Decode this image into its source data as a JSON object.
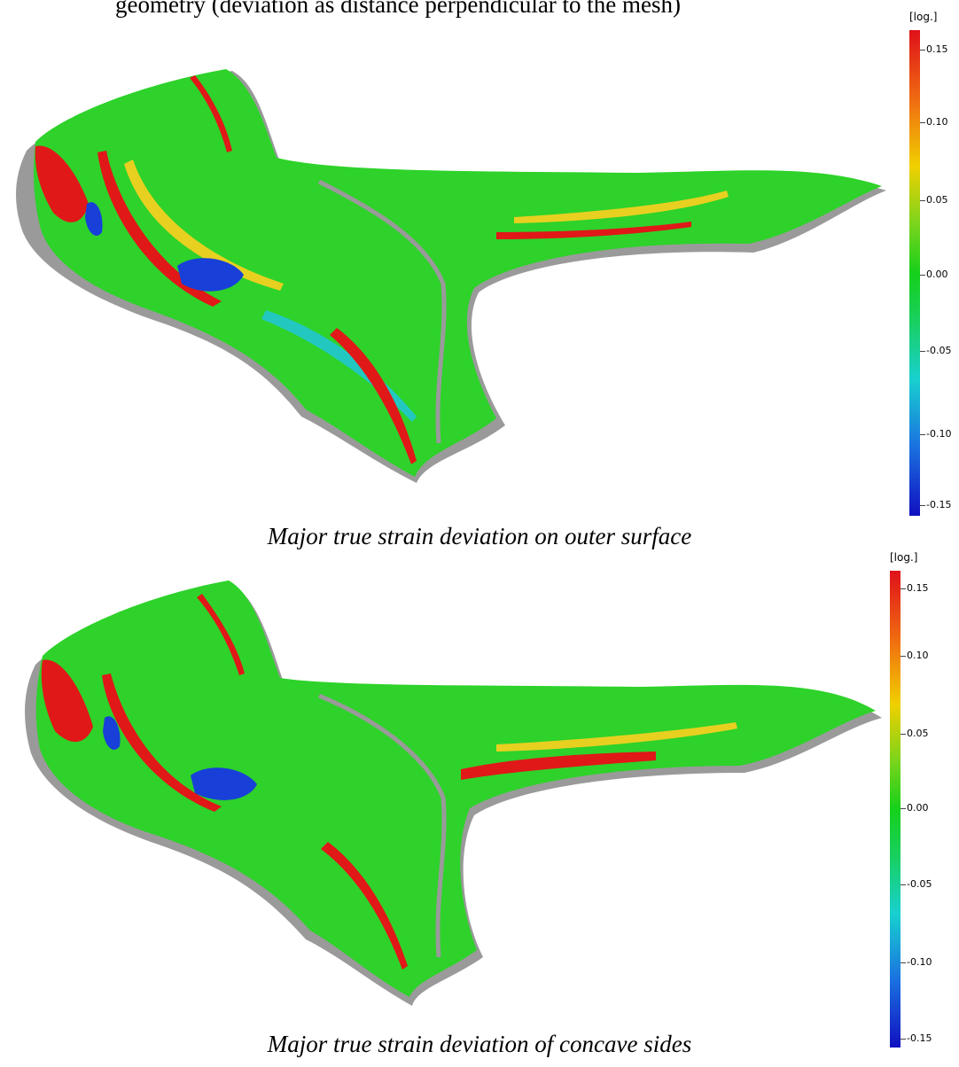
{
  "header_text": "geometry (deviation as distance perpendicular to the mesh)",
  "figures": [
    {
      "caption": "Major true strain deviation on outer surface",
      "legend": {
        "unit": "[log.]",
        "ticks": [
          "0.15",
          "0.10",
          "0.05",
          "0.00",
          "-0.05",
          "-0.10",
          "-0.15"
        ]
      }
    },
    {
      "caption": "Major true strain deviation of concave sides",
      "legend": {
        "unit": "[log.]",
        "ticks": [
          "0.15",
          "0.10",
          "0.05",
          "0.00",
          "-0.05",
          "-0.10",
          "-0.15"
        ]
      }
    }
  ],
  "colors": {
    "base_surface": "#2ed22a",
    "shadow": "#9a9a9a",
    "high_strain": "#e01818",
    "mid_strain": "#e8d020",
    "low_strain": "#1840d8",
    "cyan_strain": "#22c8c0"
  }
}
